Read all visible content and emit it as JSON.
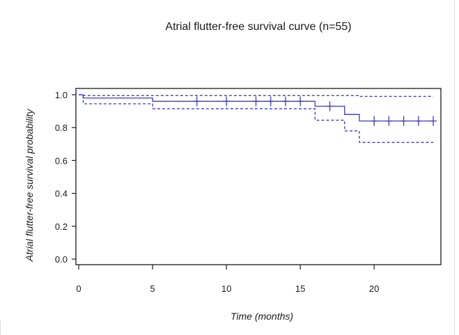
{
  "chart_data": {
    "type": "line",
    "title": "Atrial flutter-free survival curve (n=55)",
    "xlabel": "Time (months)",
    "ylabel": "Atrial flutter-free survival probability",
    "xlim": [
      0,
      24.5
    ],
    "ylim": [
      0,
      1.0
    ],
    "x_ticks": [
      0,
      5,
      10,
      15,
      20
    ],
    "y_ticks": [
      0.0,
      0.2,
      0.4,
      0.6,
      0.8,
      1.0
    ],
    "x_tick_labels": [
      "0",
      "5",
      "10",
      "15",
      "20"
    ],
    "y_tick_labels": [
      "0.0",
      "0.2",
      "0.4",
      "0.6",
      "0.8",
      "1.0"
    ],
    "grid": false,
    "colors": {
      "curve": "#3b3bb3",
      "text": "#1a1a1a",
      "axis": "#1a1a1a"
    },
    "series": [
      {
        "style": "step-solid",
        "x": [
          0,
          0.3,
          5,
          15,
          16,
          17,
          18,
          19,
          24
        ],
        "y": [
          1.0,
          0.98,
          0.96,
          0.96,
          0.93,
          0.93,
          0.88,
          0.84,
          0.84
        ]
      },
      {
        "style": "step-dashed",
        "x": [
          0,
          0.3,
          19,
          24
        ],
        "y": [
          1.0,
          0.995,
          0.99,
          0.99
        ]
      },
      {
        "style": "step-dashed",
        "x": [
          0,
          0.3,
          5,
          16,
          18,
          19,
          24
        ],
        "y": [
          1.0,
          0.945,
          0.915,
          0.845,
          0.78,
          0.71,
          0.71
        ]
      }
    ],
    "censor_marks": {
      "x": [
        8,
        10,
        12,
        13,
        14,
        15,
        17,
        20,
        21,
        22,
        23,
        24
      ],
      "y": [
        0.96,
        0.96,
        0.96,
        0.96,
        0.96,
        0.96,
        0.93,
        0.84,
        0.84,
        0.84,
        0.84,
        0.84
      ]
    }
  }
}
